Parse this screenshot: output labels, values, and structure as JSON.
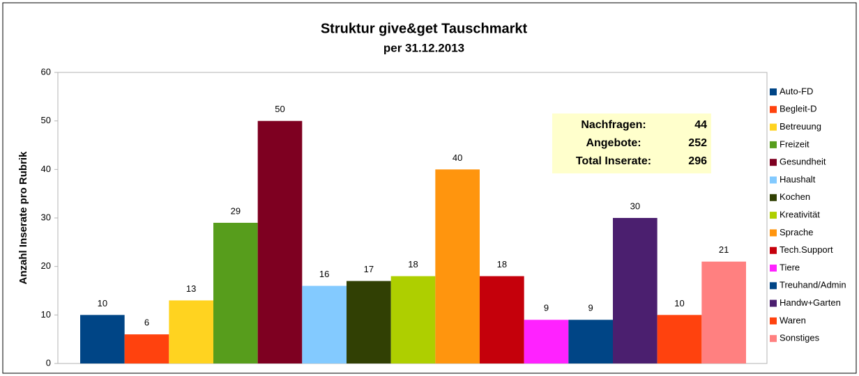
{
  "chart_data": {
    "type": "bar",
    "title": "Struktur give&get Tauschmarkt",
    "subtitle": "per 31.12.2013",
    "y_label": "Anzahl Inserate pro Rubrik",
    "categories": [
      "Auto-FD",
      "Begleit-D",
      "Betreuung",
      "Freizeit",
      "Gesundheit",
      "Haushalt",
      "Kochen",
      "Kreativität",
      "Sprache",
      "Tech.Support",
      "Tiere",
      "Treuhand/Admin",
      "Handw+Garten",
      "Waren",
      "Sonstiges"
    ],
    "values": [
      10,
      6,
      13,
      29,
      50,
      16,
      17,
      18,
      40,
      18,
      9,
      9,
      30,
      10,
      21
    ],
    "colors": [
      "#004586",
      "#ff420e",
      "#ffd320",
      "#579d1c",
      "#7e0021",
      "#83caff",
      "#314004",
      "#aecf00",
      "#ff950e",
      "#c5000b",
      "#ff22ff",
      "#004586",
      "#4b1f6f",
      "#ff420e",
      "#ff8080"
    ],
    "ylim": [
      0,
      60
    ],
    "yticks": [
      0,
      10,
      20,
      30,
      40,
      50,
      60
    ],
    "legend": "right",
    "annotation": {
      "rows": [
        {
          "label": "Nachfragen:",
          "value": 44
        },
        {
          "label": "Angebote:",
          "value": 252
        },
        {
          "label": "Total Inserate:",
          "value": 296
        }
      ]
    }
  }
}
